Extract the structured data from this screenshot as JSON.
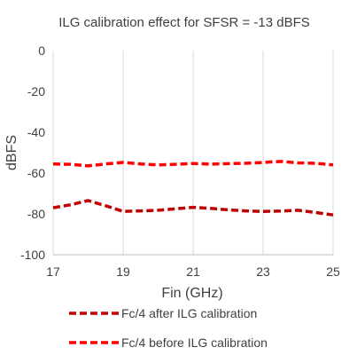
{
  "chart_data": {
    "type": "line",
    "title": "ILG calibration effect for SFSR = -13 dBFS",
    "xlabel": "Fin (GHz)",
    "ylabel": "dBFS",
    "xlim": [
      17,
      25
    ],
    "ylim": [
      -100,
      0
    ],
    "x_ticks": [
      17,
      19,
      21,
      23,
      25
    ],
    "y_ticks": [
      0,
      -20,
      -40,
      -60,
      -80,
      -100
    ],
    "x_tick_labels": [
      "17",
      "19",
      "21",
      "23",
      "25"
    ],
    "y_tick_labels": [
      "0",
      "-20",
      "-40",
      "-60",
      "-80",
      "-100"
    ],
    "grid": "vertical",
    "legend_position": "bottom",
    "series": [
      {
        "name": "Fc/4 after ILG calibration",
        "color": "#C00000",
        "style": "dashed",
        "x": [
          17,
          17.5,
          18,
          18.5,
          19,
          19.5,
          20,
          20.5,
          21,
          21.5,
          22,
          22.5,
          23,
          23.5,
          24,
          24.5,
          25
        ],
        "y": [
          -77,
          -75.5,
          -73.5,
          -76,
          -78.8,
          -78.5,
          -78.2,
          -77.5,
          -76.8,
          -77.3,
          -78,
          -78.5,
          -78.8,
          -78.6,
          -78.2,
          -79.3,
          -80.5
        ]
      },
      {
        "name": "Fc/4 before ILG calibration",
        "color": "#FF0000",
        "style": "dashed",
        "x": [
          17,
          17.5,
          18,
          18.5,
          19,
          19.5,
          20,
          20.5,
          21,
          21.5,
          22,
          22.5,
          23,
          23.5,
          24,
          24.5,
          25
        ],
        "y": [
          -55.5,
          -55.7,
          -56.5,
          -55.5,
          -54.8,
          -55.5,
          -56,
          -55.7,
          -55.3,
          -55.6,
          -55.4,
          -55.2,
          -54.8,
          -54.3,
          -55,
          -55.2,
          -56
        ]
      }
    ]
  }
}
